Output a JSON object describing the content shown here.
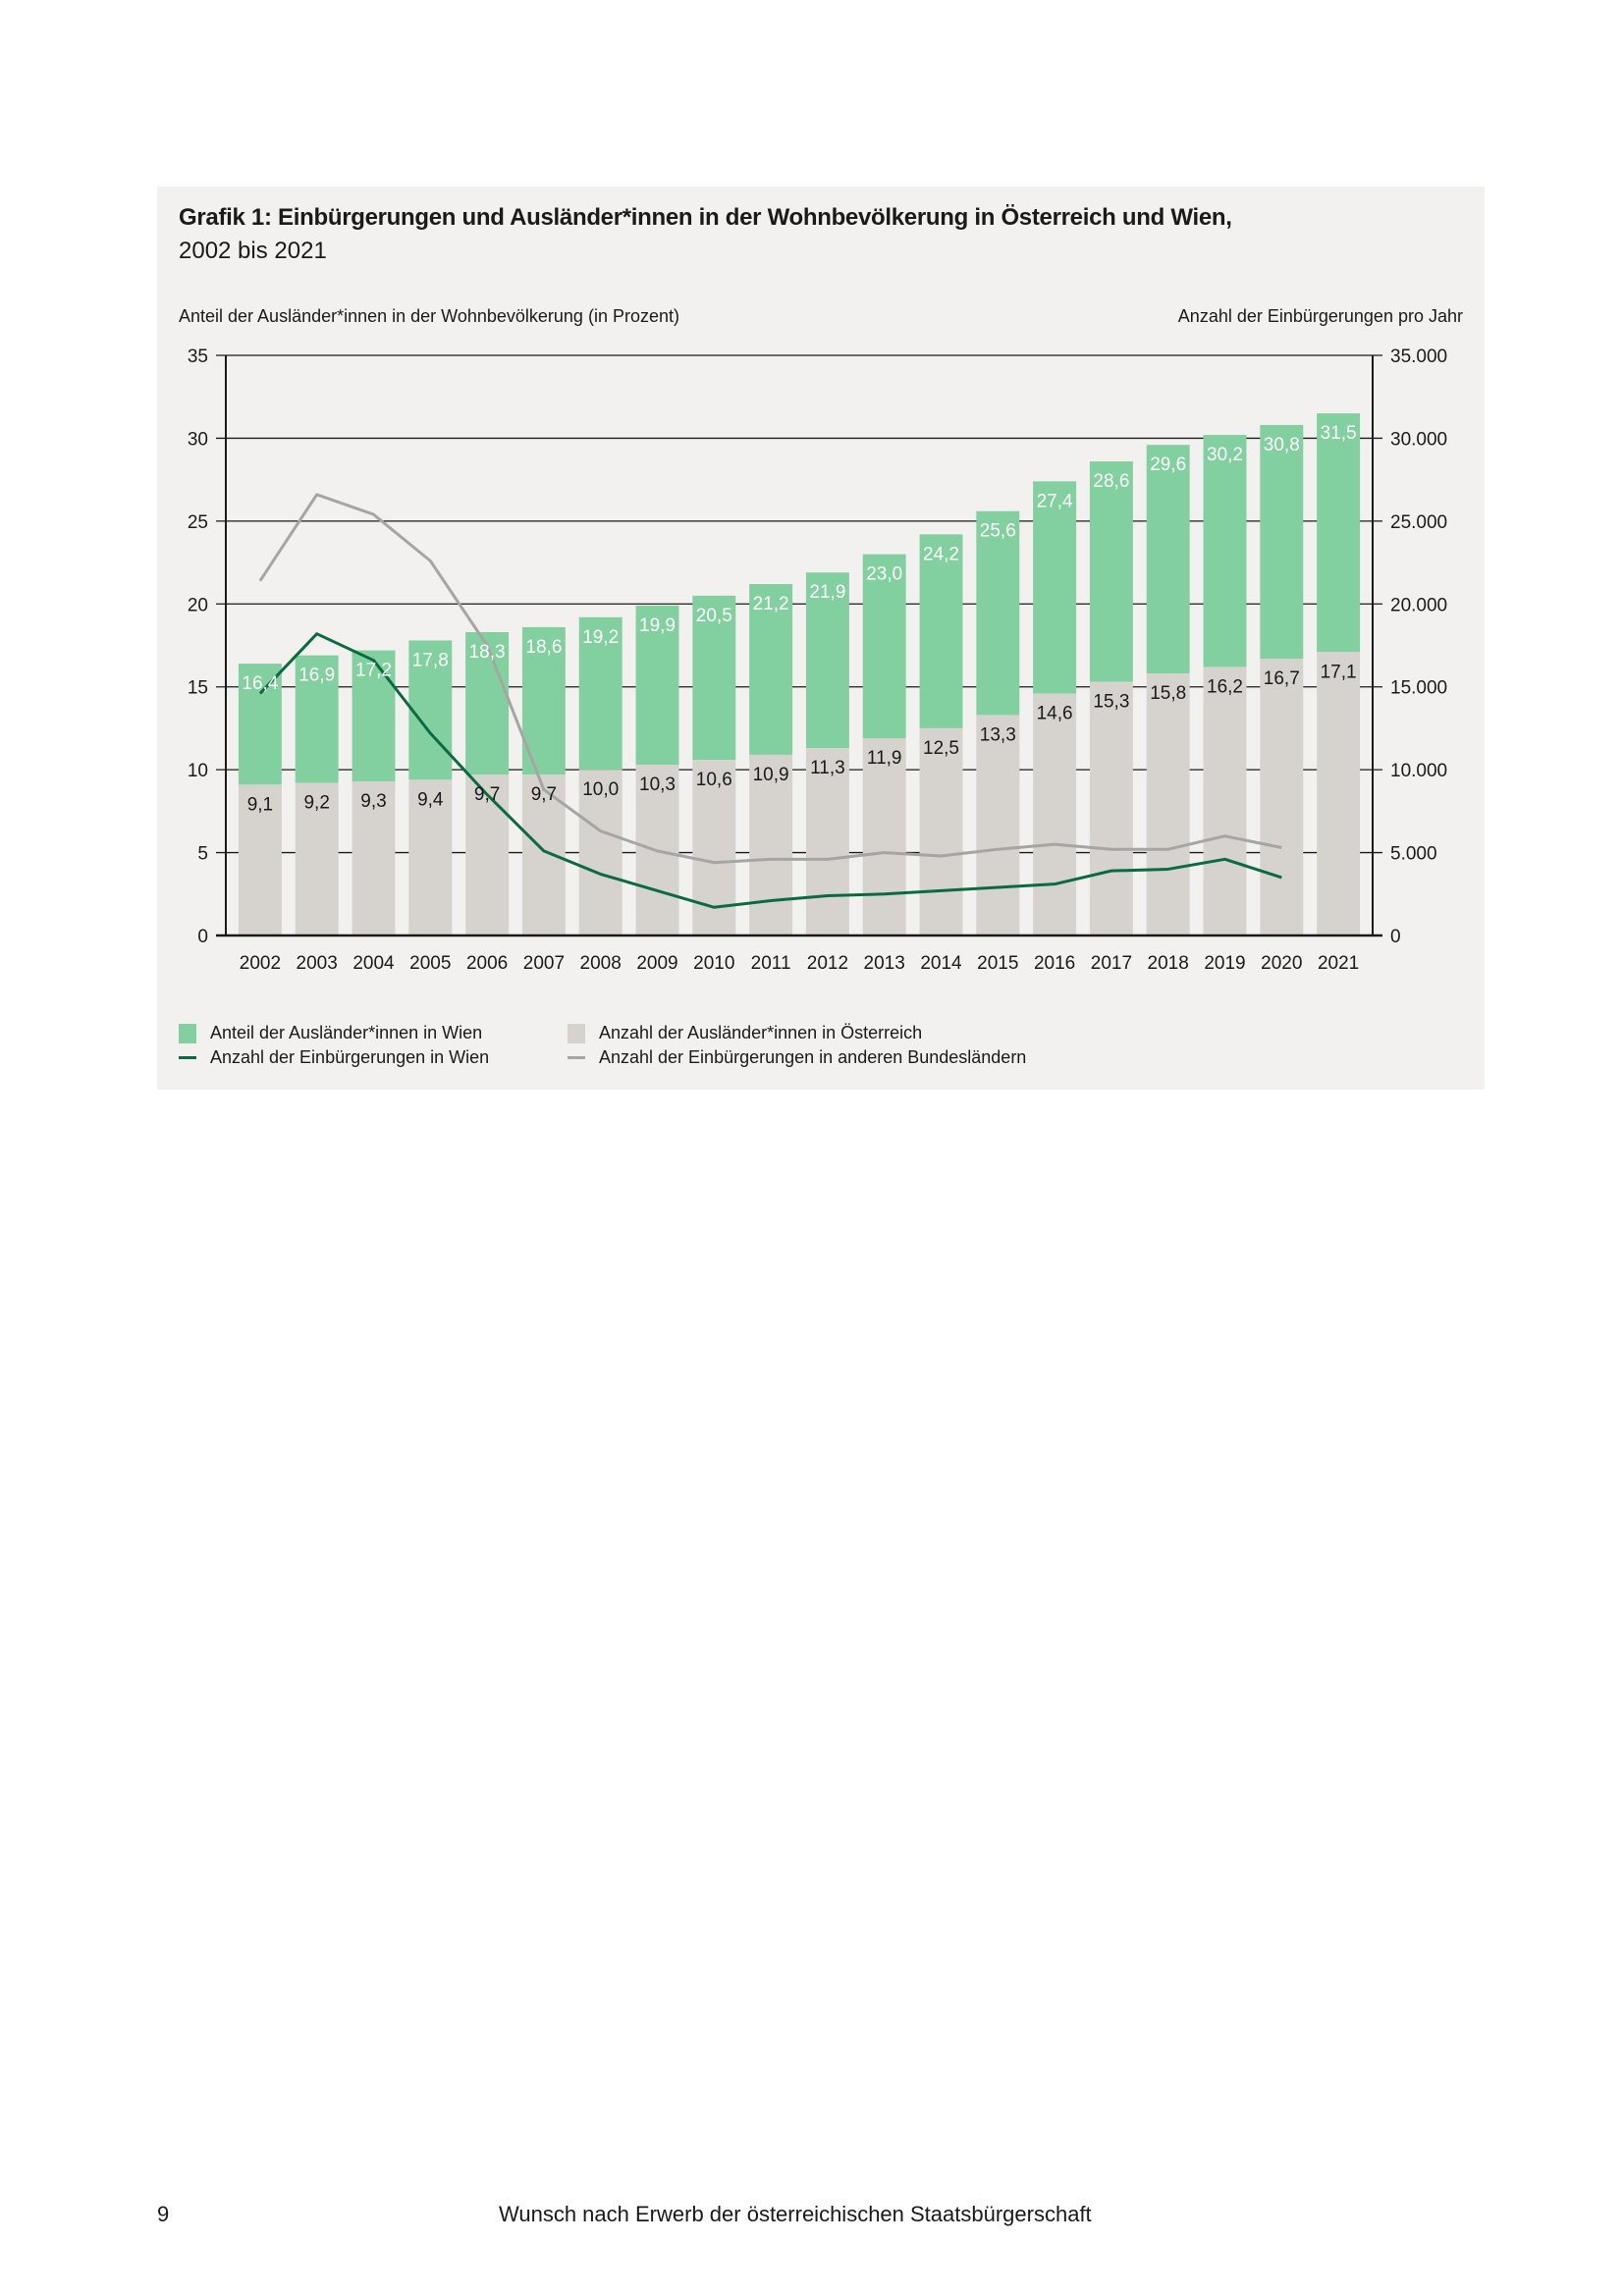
{
  "footer": {
    "page_number": "9",
    "running_title": "Wunsch nach Erwerb der österreichischen Staatsbürgerschaft"
  },
  "colors": {
    "panel_bg": "#f2f1ef",
    "wien_share": "#82d09f",
    "austria_share": "#d6d2cd",
    "wien_naturalisations": "#0a6b41",
    "other_naturalisations": "#a6a5a3"
  },
  "chart_data": {
    "type": "bar",
    "title": "Grafik 1: Einbürgerungen und Ausländer*innen in der Wohnbevölkerung in Österreich und Wien,",
    "subtitle": "2002 bis 2021",
    "ylabel_left": "Anteil der Ausländer*innen in der Wohnbevölkerung (in Prozent)",
    "ylabel_right": "Anzahl der Einbürgerungen pro Jahr",
    "xlabel": "",
    "ylim_left": [
      0,
      35
    ],
    "ylim_right": [
      0,
      35000
    ],
    "yticks_left": [
      "0",
      "5",
      "10",
      "15",
      "20",
      "25",
      "30",
      "35"
    ],
    "yticks_right": [
      "0",
      "5.000",
      "10.000",
      "15.000",
      "20.000",
      "25.000",
      "30.000",
      "35.000"
    ],
    "grid": true,
    "legend_position": "bottom",
    "categories": [
      "2002",
      "2003",
      "2004",
      "2005",
      "2006",
      "2007",
      "2008",
      "2009",
      "2010",
      "2011",
      "2012",
      "2013",
      "2014",
      "2015",
      "2016",
      "2017",
      "2018",
      "2019",
      "2020",
      "2021"
    ],
    "series": [
      {
        "name": "Anteil der Ausländer*innen in Wien",
        "type": "bar",
        "axis": "left",
        "values": [
          16.4,
          16.9,
          17.2,
          17.8,
          18.3,
          18.6,
          19.2,
          19.9,
          20.5,
          21.2,
          21.9,
          23.0,
          24.2,
          25.6,
          27.4,
          28.6,
          29.6,
          30.2,
          30.8,
          31.5
        ],
        "labels": [
          "16,4",
          "16,9",
          "17,2",
          "17,8",
          "18,3",
          "18,6",
          "19,2",
          "19,9",
          "20,5",
          "21,2",
          "21,9",
          "23,0",
          "24,2",
          "25,6",
          "27,4",
          "28,6",
          "29,6",
          "30,2",
          "30,8",
          "31,5"
        ]
      },
      {
        "name": "Anzahl der Ausländer*innen in Österreich",
        "type": "bar",
        "axis": "left",
        "values": [
          9.1,
          9.2,
          9.3,
          9.4,
          9.7,
          9.7,
          10.0,
          10.3,
          10.6,
          10.9,
          11.3,
          11.9,
          12.5,
          13.3,
          14.6,
          15.3,
          15.8,
          16.2,
          16.7,
          17.1
        ],
        "labels": [
          "9,1",
          "9,2",
          "9,3",
          "9,4",
          "9,7",
          "9,7",
          "10,0",
          "10,3",
          "10,6",
          "10,9",
          "11,3",
          "11,9",
          "12,5",
          "13,3",
          "14,6",
          "15,3",
          "15,8",
          "16,2",
          "16,7",
          "17,1"
        ]
      },
      {
        "name": "Anzahl der Einbürgerungen in Wien",
        "type": "line",
        "axis": "right",
        "values": [
          14600,
          18200,
          16600,
          12200,
          8500,
          5100,
          3700,
          2700,
          1700,
          2100,
          2400,
          2500,
          2700,
          2900,
          3100,
          3900,
          4000,
          4600,
          3500,
          null
        ]
      },
      {
        "name": "Anzahl der Einbürgerungen in anderen Bundesländern",
        "type": "line",
        "axis": "right",
        "values": [
          21400,
          26600,
          25400,
          22600,
          17500,
          8800,
          6300,
          5100,
          4400,
          4600,
          4600,
          5000,
          4800,
          5200,
          5500,
          5200,
          5200,
          6000,
          5300,
          null
        ]
      }
    ]
  }
}
